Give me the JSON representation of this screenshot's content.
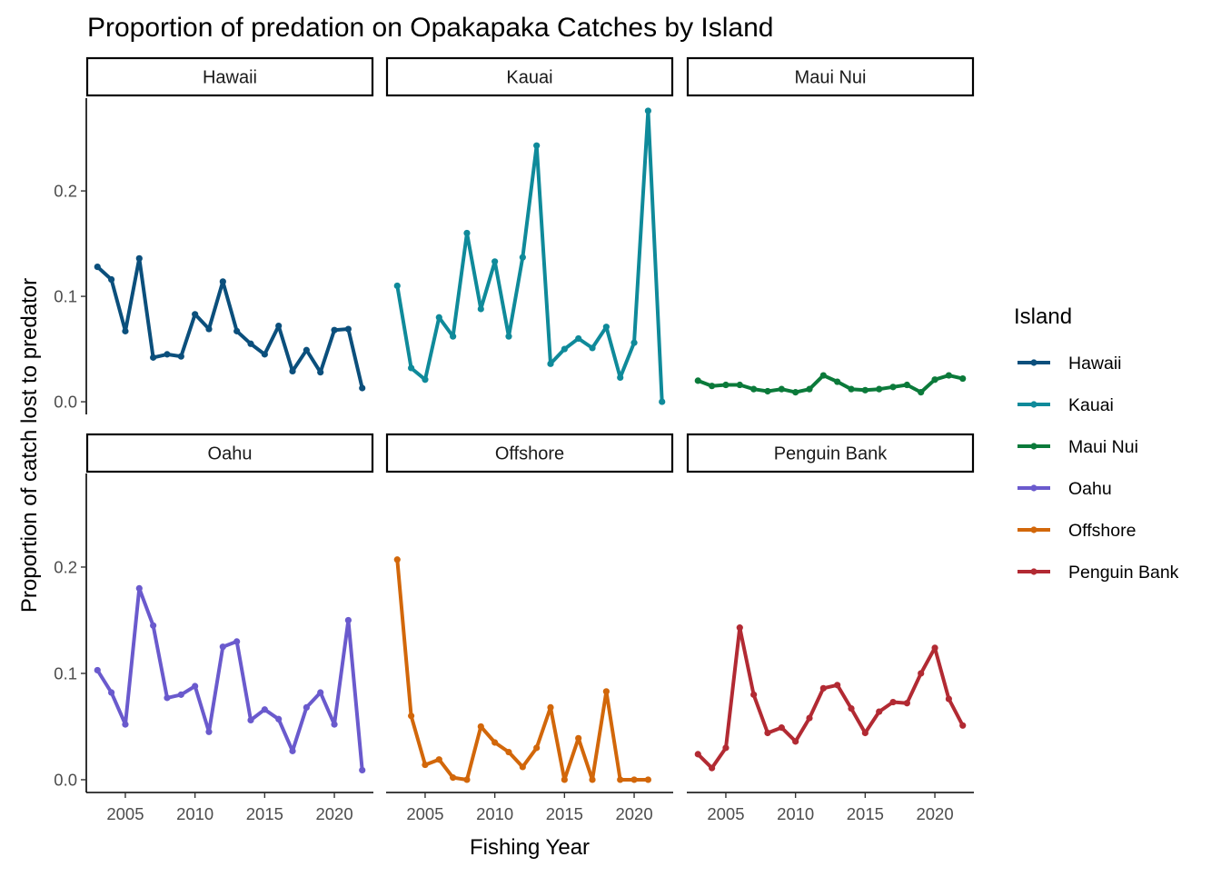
{
  "chart_data": {
    "type": "line",
    "title": "Proportion of predation on Opakapaka Catches by Island",
    "xlabel": "Fishing Year",
    "ylabel": "Proportion of catch lost to predator",
    "xlim": [
      2002.2,
      2022.8
    ],
    "ylim": [
      -0.012,
      0.288
    ],
    "x_ticks": [
      2005,
      2010,
      2015,
      2020
    ],
    "y_ticks": [
      0.0,
      0.1,
      0.2
    ],
    "y_tick_labels": [
      "0.0",
      "0.1",
      "0.2"
    ],
    "grid": false,
    "facet_layout": {
      "rows": 2,
      "cols": 3
    },
    "legend": {
      "title": "Island",
      "position": "right"
    },
    "series": [
      {
        "name": "Hawaii",
        "color": "#0b4f7c",
        "x": [
          2003,
          2004,
          2005,
          2006,
          2007,
          2008,
          2009,
          2010,
          2011,
          2012,
          2013,
          2014,
          2015,
          2016,
          2017,
          2018,
          2019,
          2020,
          2021,
          2022
        ],
        "values": [
          0.128,
          0.116,
          0.067,
          0.136,
          0.042,
          0.045,
          0.043,
          0.083,
          0.069,
          0.114,
          0.067,
          0.055,
          0.045,
          0.072,
          0.029,
          0.049,
          0.028,
          0.068,
          0.069,
          0.013
        ]
      },
      {
        "name": "Kauai",
        "color": "#0f8a9a",
        "x": [
          2003,
          2004,
          2005,
          2006,
          2007,
          2008,
          2009,
          2010,
          2011,
          2012,
          2013,
          2014,
          2015,
          2016,
          2017,
          2018,
          2019,
          2020,
          2021,
          2022
        ],
        "values": [
          0.11,
          0.032,
          0.021,
          0.08,
          0.062,
          0.16,
          0.088,
          0.133,
          0.062,
          0.137,
          0.243,
          0.036,
          0.05,
          0.06,
          0.051,
          0.071,
          0.023,
          0.056,
          0.276,
          0.0
        ]
      },
      {
        "name": "Maui Nui",
        "color": "#0b7a3a",
        "x": [
          2003,
          2004,
          2005,
          2006,
          2007,
          2008,
          2009,
          2010,
          2011,
          2012,
          2013,
          2014,
          2015,
          2016,
          2017,
          2018,
          2019,
          2020,
          2021,
          2022
        ],
        "values": [
          0.02,
          0.015,
          0.016,
          0.016,
          0.012,
          0.01,
          0.012,
          0.009,
          0.012,
          0.025,
          0.019,
          0.012,
          0.011,
          0.012,
          0.014,
          0.016,
          0.009,
          0.021,
          0.025,
          0.022
        ]
      },
      {
        "name": "Oahu",
        "color": "#6a5acd",
        "x": [
          2003,
          2004,
          2005,
          2006,
          2007,
          2008,
          2009,
          2010,
          2011,
          2012,
          2013,
          2014,
          2015,
          2016,
          2017,
          2018,
          2019,
          2020,
          2021,
          2022
        ],
        "values": [
          0.103,
          0.082,
          0.052,
          0.18,
          0.145,
          0.077,
          0.08,
          0.088,
          0.045,
          0.125,
          0.13,
          0.056,
          0.066,
          0.057,
          0.027,
          0.068,
          0.082,
          0.052,
          0.15,
          0.009
        ]
      },
      {
        "name": "Offshore",
        "color": "#d2670a",
        "x": [
          2003,
          2004,
          2005,
          2006,
          2007,
          2008,
          2009,
          2010,
          2011,
          2012,
          2013,
          2014,
          2015,
          2016,
          2017,
          2018,
          2019,
          2020,
          2021
        ],
        "values": [
          0.207,
          0.06,
          0.014,
          0.019,
          0.002,
          0.0,
          0.05,
          0.035,
          0.026,
          0.012,
          0.03,
          0.068,
          0.0,
          0.039,
          0.0,
          0.083,
          0.0,
          0.0,
          0.0
        ]
      },
      {
        "name": "Penguin Bank",
        "color": "#b22a33",
        "x": [
          2003,
          2004,
          2005,
          2006,
          2007,
          2008,
          2009,
          2010,
          2011,
          2012,
          2013,
          2014,
          2015,
          2016,
          2017,
          2018,
          2019,
          2020,
          2021,
          2022
        ],
        "values": [
          0.024,
          0.011,
          0.03,
          0.143,
          0.08,
          0.044,
          0.049,
          0.036,
          0.058,
          0.086,
          0.089,
          0.067,
          0.044,
          0.064,
          0.073,
          0.072,
          0.1,
          0.124,
          0.076,
          0.051
        ]
      }
    ]
  }
}
